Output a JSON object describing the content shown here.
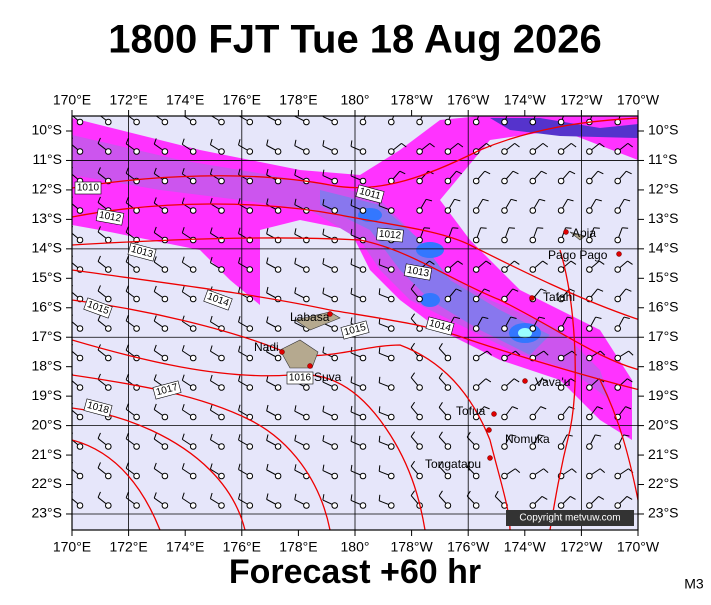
{
  "header": {
    "title": "1800 FJT Tue 18 Aug 2026"
  },
  "map": {
    "lon_labels": [
      "170°E",
      "172°E",
      "174°E",
      "176°E",
      "178°E",
      "180°",
      "178°W",
      "176°W",
      "174°W",
      "172°W",
      "170°W"
    ],
    "lat_labels": [
      "10°S",
      "11°S",
      "12°S",
      "13°S",
      "14°S",
      "15°S",
      "16°S",
      "17°S",
      "18°S",
      "19°S",
      "20°S",
      "21°S",
      "22°S",
      "23°S"
    ],
    "places": [
      {
        "label": "Apia"
      },
      {
        "label": "Pago Pago"
      },
      {
        "label": "Tafahi"
      },
      {
        "label": "Labasa"
      },
      {
        "label": "Nadi"
      },
      {
        "label": "Suva"
      },
      {
        "label": "Vava'u"
      },
      {
        "label": "Tofua"
      },
      {
        "label": "Nomuka"
      },
      {
        "label": "Tongatapu"
      }
    ],
    "isobar_labels": [
      "1010",
      "1011",
      "1012",
      "1012",
      "1013",
      "1013",
      "1014",
      "1014",
      "1015",
      "1015",
      "1016",
      "1017",
      "1018"
    ],
    "copyright": "Copyright metvuw.com"
  },
  "footer": {
    "text": "Forecast +60 hr",
    "model": "M3"
  }
}
